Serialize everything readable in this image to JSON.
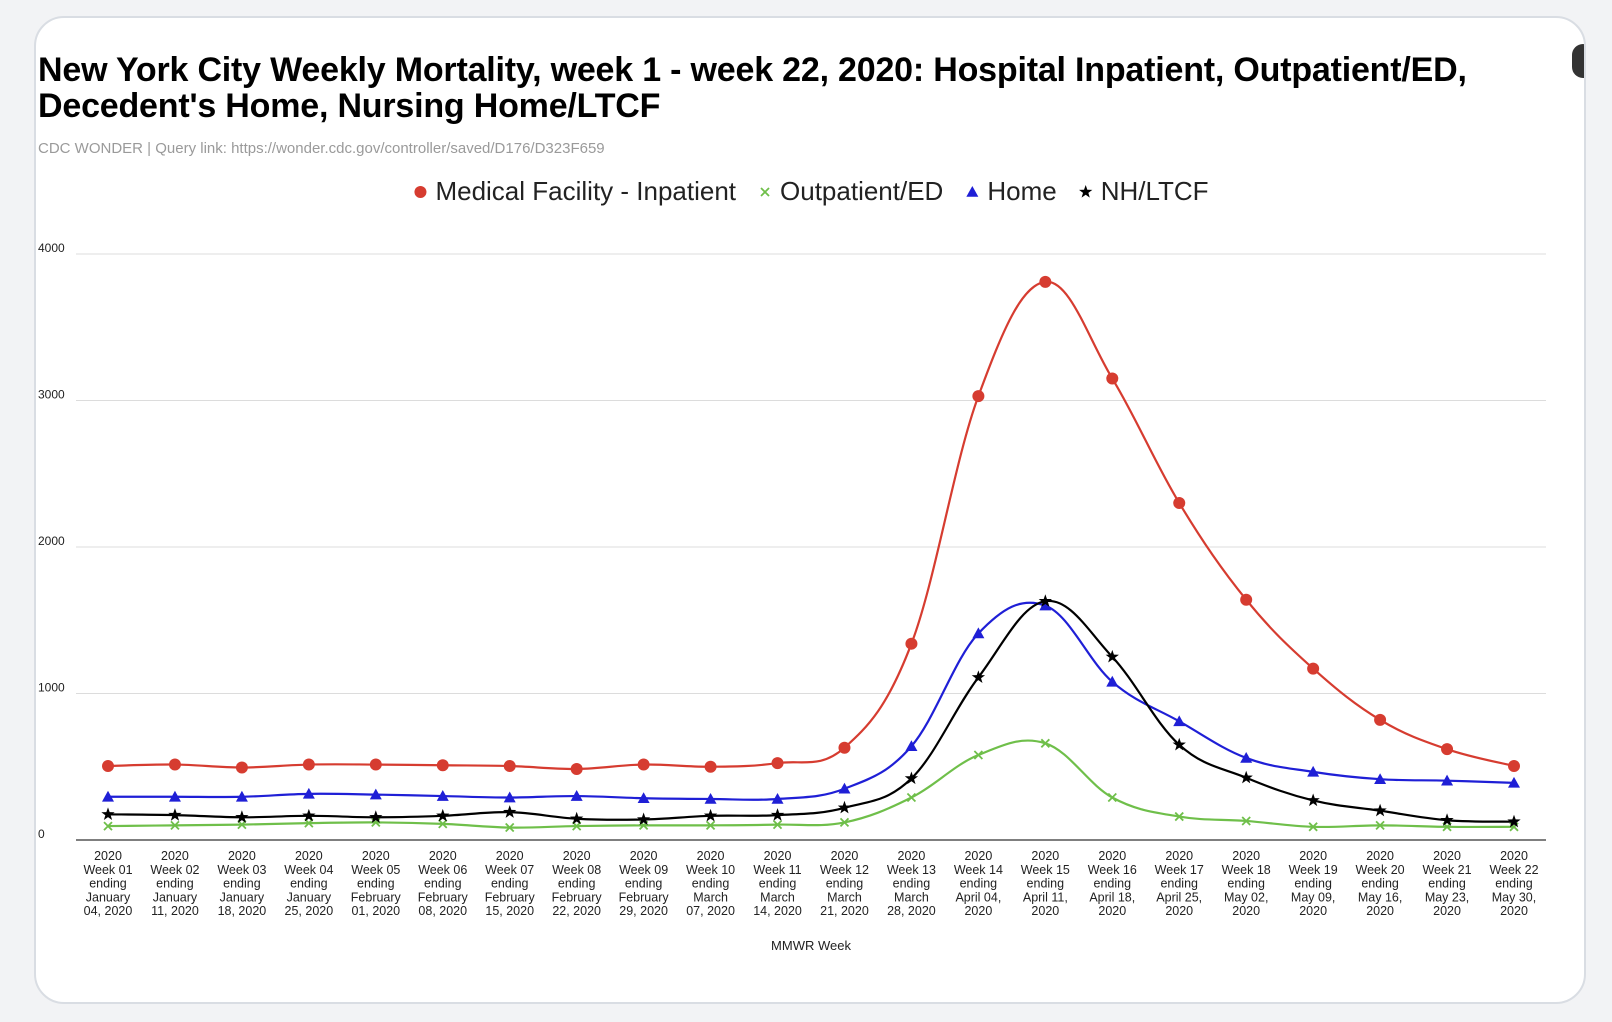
{
  "chart_data": {
    "type": "line",
    "title": "New York City Weekly Mortality, week 1 - week 22, 2020: Hospital Inpatient, Outpatient/ED, Decedent's Home, Nursing Home/LTCF",
    "subtitle": "CDC WONDER | Query link: https://wonder.cdc.gov/controller/saved/D176/D323F659",
    "xlabel": "MMWR Week",
    "ylabel": "",
    "ylim": [
      0,
      4000
    ],
    "yticks": [
      "0",
      "1000",
      "2000",
      "3000",
      "4000"
    ],
    "grid": true,
    "legend_position": "top",
    "categories": [
      [
        "2020",
        "Week 01",
        "ending",
        "January",
        "04, 2020"
      ],
      [
        "2020",
        "Week 02",
        "ending",
        "January",
        "11, 2020"
      ],
      [
        "2020",
        "Week 03",
        "ending",
        "January",
        "18, 2020"
      ],
      [
        "2020",
        "Week 04",
        "ending",
        "January",
        "25, 2020"
      ],
      [
        "2020",
        "Week 05",
        "ending",
        "February",
        "01, 2020"
      ],
      [
        "2020",
        "Week 06",
        "ending",
        "February",
        "08, 2020"
      ],
      [
        "2020",
        "Week 07",
        "ending",
        "February",
        "15, 2020"
      ],
      [
        "2020",
        "Week 08",
        "ending",
        "February",
        "22, 2020"
      ],
      [
        "2020",
        "Week 09",
        "ending",
        "February",
        "29, 2020"
      ],
      [
        "2020",
        "Week 10",
        "ending",
        "March",
        "07, 2020"
      ],
      [
        "2020",
        "Week 11",
        "ending",
        "March",
        "14, 2020"
      ],
      [
        "2020",
        "Week 12",
        "ending",
        "March",
        "21, 2020"
      ],
      [
        "2020",
        "Week 13",
        "ending",
        "March",
        "28, 2020"
      ],
      [
        "2020",
        "Week 14",
        "ending",
        "April 04,",
        "2020"
      ],
      [
        "2020",
        "Week 15",
        "ending",
        "April 11,",
        "2020"
      ],
      [
        "2020",
        "Week 16",
        "ending",
        "April 18,",
        "2020"
      ],
      [
        "2020",
        "Week 17",
        "ending",
        "April 25,",
        "2020"
      ],
      [
        "2020",
        "Week 18",
        "ending",
        "May 02,",
        "2020"
      ],
      [
        "2020",
        "Week 19",
        "ending",
        "May 09,",
        "2020"
      ],
      [
        "2020",
        "Week 20",
        "ending",
        "May 16,",
        "2020"
      ],
      [
        "2020",
        "Week 21",
        "ending",
        "May 23,",
        "2020"
      ],
      [
        "2020",
        "Week 22",
        "ending",
        "May 30,",
        "2020"
      ]
    ],
    "series": [
      {
        "name": "Medical Facility - Inpatient",
        "color": "#d63c30",
        "marker": "circle",
        "values": [
          505,
          515,
          495,
          515,
          515,
          510,
          505,
          485,
          515,
          500,
          525,
          630,
          1340,
          3030,
          3810,
          3150,
          2300,
          1640,
          1170,
          820,
          620,
          505
        ]
      },
      {
        "name": "Outpatient/ED",
        "color": "#6fbf4a",
        "marker": "x",
        "values": [
          95,
          100,
          105,
          115,
          120,
          110,
          85,
          95,
          100,
          100,
          105,
          120,
          290,
          580,
          660,
          290,
          160,
          130,
          90,
          100,
          90,
          90
        ]
      },
      {
        "name": "Home",
        "color": "#1f1fd6",
        "marker": "triangle",
        "values": [
          295,
          295,
          295,
          315,
          310,
          300,
          290,
          300,
          285,
          280,
          280,
          350,
          640,
          1410,
          1600,
          1080,
          810,
          560,
          465,
          415,
          405,
          390
        ]
      },
      {
        "name": "NH/LTCF",
        "color": "#000000",
        "marker": "star",
        "values": [
          175,
          170,
          155,
          165,
          155,
          165,
          190,
          145,
          140,
          165,
          170,
          220,
          420,
          1110,
          1630,
          1250,
          650,
          425,
          270,
          200,
          135,
          125
        ]
      }
    ]
  }
}
